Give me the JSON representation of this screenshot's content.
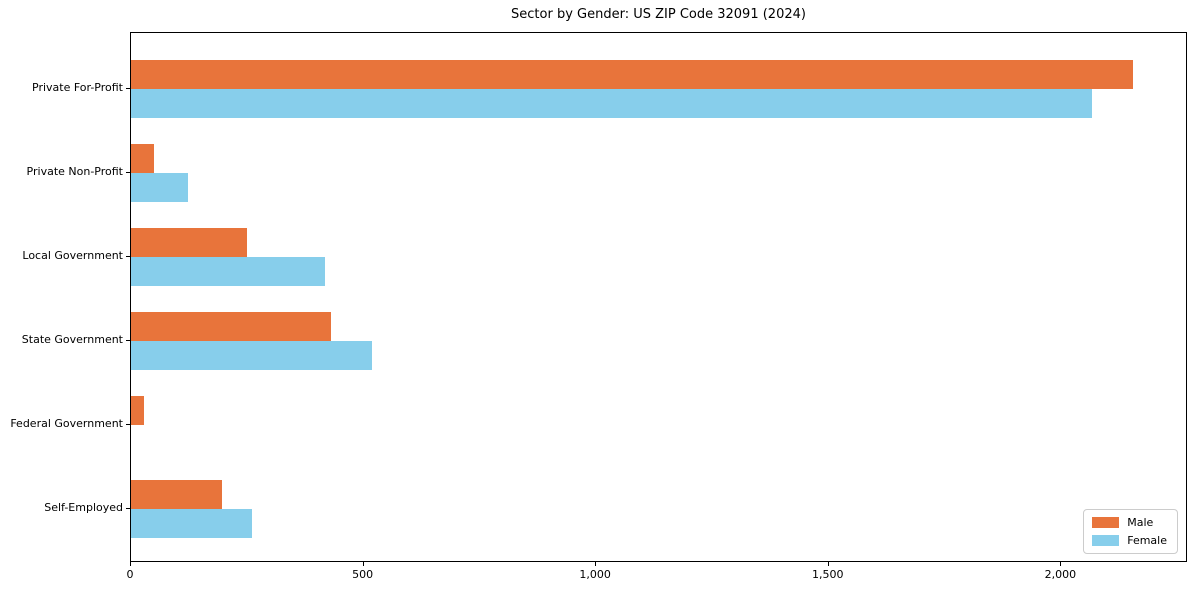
{
  "chart_data": {
    "type": "bar",
    "orientation": "horizontal",
    "title": "Sector by Gender: US ZIP Code 32091 (2024)",
    "categories": [
      "Private For-Profit",
      "Private Non-Profit",
      "Local Government",
      "State Government",
      "Federal Government",
      "Self-Employed"
    ],
    "series": [
      {
        "name": "Male",
        "color": "#e8743b",
        "values": [
          2155,
          50,
          250,
          430,
          28,
          195
        ]
      },
      {
        "name": "Female",
        "color": "#87ceeb",
        "values": [
          2065,
          123,
          418,
          518,
          0,
          260
        ]
      }
    ],
    "xlabel": "",
    "ylabel": "",
    "xlim": [
      0,
      2268
    ],
    "xticks": [
      0,
      500,
      1000,
      1500,
      2000
    ],
    "xtick_labels": [
      "0",
      "500",
      "1,000",
      "1,500",
      "2,000"
    ],
    "grid": false,
    "legend_position": "lower right",
    "background_color": "#ffffff",
    "axis_color": "#000000"
  }
}
